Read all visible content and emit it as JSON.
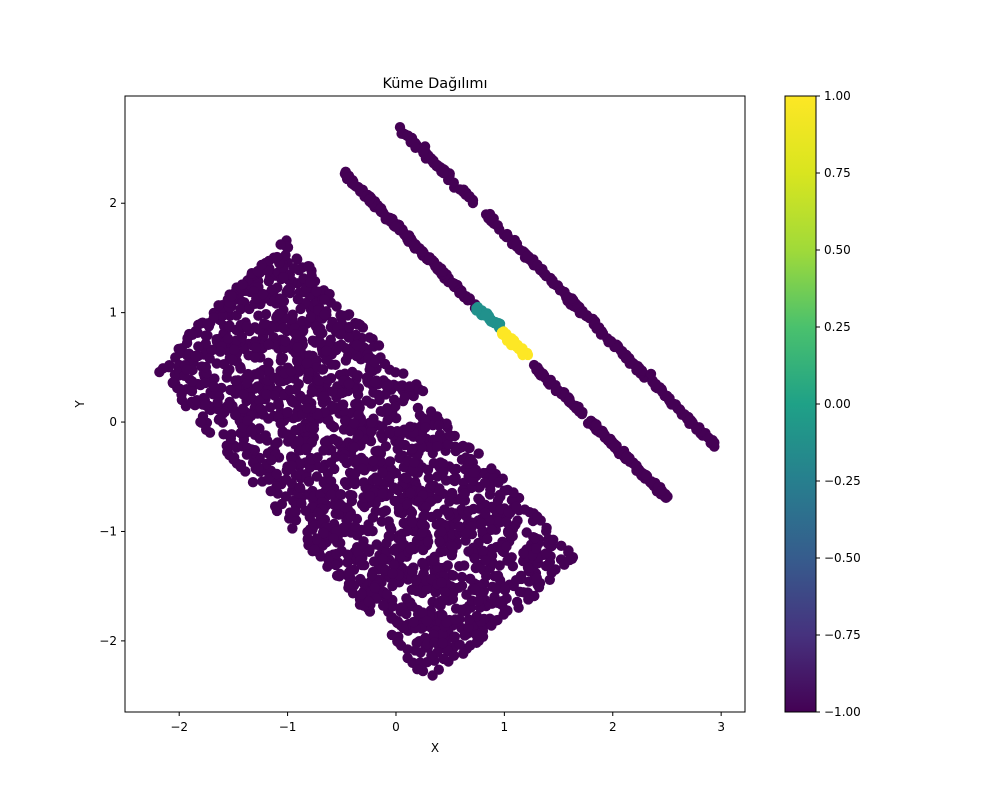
{
  "chart_data": {
    "type": "scatter",
    "title": "Küme Dağılımı",
    "xlabel": "X",
    "ylabel": "Y",
    "xlim": [
      -2.5,
      3.22
    ],
    "ylim": [
      -2.65,
      2.98
    ],
    "x_ticks": [
      -2,
      -1,
      0,
      1,
      2,
      3
    ],
    "x_tick_labels": [
      "−2",
      "−1",
      "0",
      "1",
      "2",
      "3"
    ],
    "y_ticks": [
      -2,
      -1,
      0,
      1,
      2
    ],
    "y_tick_labels": [
      "−2",
      "−1",
      "0",
      "1",
      "2"
    ],
    "grid": false,
    "colormap": "viridis",
    "colorbar": {
      "range": [
        -1.0,
        1.0
      ],
      "ticks": [
        -1.0,
        -0.75,
        -0.5,
        -0.25,
        0.0,
        0.25,
        0.5,
        0.75,
        1.0
      ],
      "tick_labels": [
        "−1.00",
        "−0.75",
        "−0.50",
        "−0.25",
        "0.00",
        "0.25",
        "0.50",
        "0.75",
        "1.00"
      ]
    },
    "clusters": [
      {
        "label": -1,
        "color": "#440154",
        "shape": "band",
        "corners": [
          [
            -2.25,
            0.48
          ],
          [
            -1.02,
            1.67
          ],
          [
            1.68,
            -1.27
          ],
          [
            0.3,
            -2.38
          ]
        ],
        "approx_points": 1900
      },
      {
        "label": -1,
        "color": "#440154",
        "shape": "line",
        "from": [
          -0.48,
          2.28
        ],
        "to": [
          0.74,
          1.05
        ],
        "approx_points": 180
      },
      {
        "label": -1,
        "color": "#440154",
        "shape": "line",
        "from": [
          1.24,
          0.55
        ],
        "to": [
          2.5,
          -0.69
        ],
        "approx_points": 150
      },
      {
        "label": 0,
        "color": "#21918c",
        "shape": "line",
        "from": [
          0.74,
          1.05
        ],
        "to": [
          0.96,
          0.86
        ],
        "approx_points": 30
      },
      {
        "label": 1,
        "color": "#fde725",
        "shape": "line",
        "from": [
          0.97,
          0.82
        ],
        "to": [
          1.24,
          0.58
        ],
        "approx_points": 35
      },
      {
        "label": -1,
        "color": "#440154",
        "shape": "line",
        "from": [
          0.0,
          2.72
        ],
        "to": [
          2.96,
          -0.23
        ],
        "approx_points": 260
      }
    ]
  }
}
